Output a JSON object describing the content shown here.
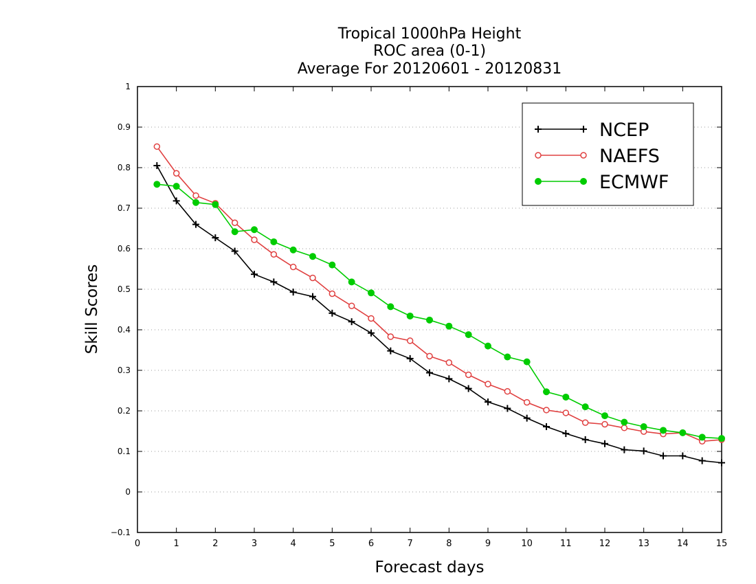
{
  "chart_data": {
    "type": "line",
    "title": [
      "Tropical 1000hPa Height",
      "ROC area (0-1)",
      "Average For 20120601 - 20120831"
    ],
    "xlabel": "Forecast days",
    "ylabel": "Skill Scores",
    "xlim": [
      0,
      15
    ],
    "ylim": [
      -0.1,
      1
    ],
    "x_ticks": [
      "0",
      "1",
      "2",
      "3",
      "4",
      "5",
      "6",
      "7",
      "8",
      "9",
      "10",
      "11",
      "12",
      "13",
      "14",
      "15"
    ],
    "y_ticks": [
      "−0.1",
      "0",
      "0.1",
      "0.2",
      "0.3",
      "0.4",
      "0.5",
      "0.6",
      "0.7",
      "0.8",
      "0.9",
      "1"
    ],
    "grid": "horizontal dotted",
    "legend_position": "top-right",
    "x": [
      0.5,
      1,
      1.5,
      2,
      2.5,
      3,
      3.5,
      4,
      4.5,
      5,
      5.5,
      6,
      6.5,
      7,
      7.5,
      8,
      8.5,
      9,
      9.5,
      10,
      10.5,
      11,
      11.5,
      12,
      12.5,
      13,
      13.5,
      14,
      14.5,
      15
    ],
    "series": [
      {
        "name": "NCEP",
        "color": "#000000",
        "marker": "plus",
        "values": [
          0.805,
          0.718,
          0.66,
          0.627,
          0.594,
          0.537,
          0.518,
          0.493,
          0.482,
          0.441,
          0.42,
          0.392,
          0.348,
          0.329,
          0.294,
          0.279,
          0.255,
          0.222,
          0.206,
          0.182,
          0.161,
          0.144,
          0.129,
          0.119,
          0.104,
          0.101,
          0.089,
          0.089,
          0.077,
          0.072
        ]
      },
      {
        "name": "NAEFS",
        "color": "#e04040",
        "marker": "open-circle",
        "values": [
          0.852,
          0.786,
          0.731,
          0.712,
          0.664,
          0.622,
          0.586,
          0.555,
          0.528,
          0.489,
          0.459,
          0.428,
          0.383,
          0.373,
          0.335,
          0.319,
          0.289,
          0.266,
          0.248,
          0.221,
          0.202,
          0.195,
          0.171,
          0.167,
          0.158,
          0.149,
          0.143,
          0.146,
          0.125,
          0.129
        ]
      },
      {
        "name": "ECMWF",
        "color": "#00cc00",
        "marker": "filled-circle",
        "values": [
          0.759,
          0.754,
          0.714,
          0.709,
          0.642,
          0.647,
          0.617,
          0.597,
          0.581,
          0.56,
          0.518,
          0.491,
          0.457,
          0.434,
          0.424,
          0.409,
          0.388,
          0.36,
          0.333,
          0.321,
          0.247,
          0.234,
          0.21,
          0.188,
          0.172,
          0.161,
          0.152,
          0.146,
          0.135,
          0.132
        ]
      }
    ]
  }
}
